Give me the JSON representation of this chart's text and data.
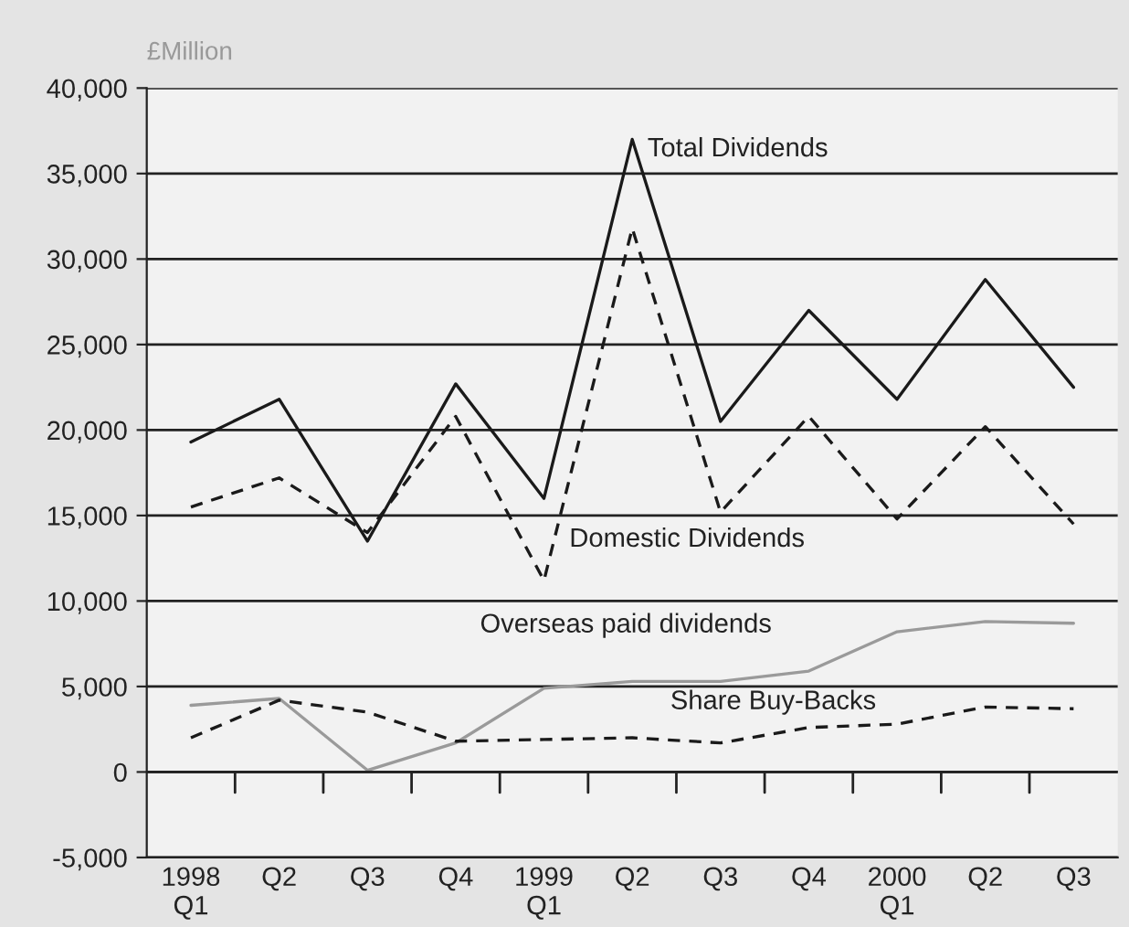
{
  "chart_data": {
    "type": "line",
    "ylabel": "£Million",
    "categories": [
      "1998\nQ1",
      "Q2",
      "Q3",
      "Q4",
      "1999\nQ1",
      "Q2",
      "Q3",
      "Q4",
      "2000\nQ1",
      "Q2",
      "Q3"
    ],
    "series": [
      {
        "name": "Total Dividends",
        "color": "#1a1a1a",
        "line_style": "solid",
        "values": [
          19300,
          21800,
          13500,
          22700,
          16000,
          37000,
          20500,
          27000,
          21800,
          28800,
          22500
        ]
      },
      {
        "name": "Domestic Dividends",
        "color": "#1a1a1a",
        "line_style": "dashed",
        "values": [
          15500,
          17200,
          14000,
          20800,
          11200,
          31800,
          15200,
          20800,
          14800,
          20200,
          14500
        ]
      },
      {
        "name": "Overseas paid dividends",
        "color": "#9a9a9a",
        "line_style": "solid",
        "values": [
          3900,
          4300,
          100,
          1700,
          4900,
          5300,
          5300,
          5900,
          8200,
          8800,
          8700
        ]
      },
      {
        "name": "Share Buy-Backs",
        "color": "#1a1a1a",
        "line_style": "dashed",
        "values": [
          2000,
          4200,
          3500,
          1800,
          1900,
          2000,
          1700,
          2600,
          2800,
          3800,
          3700
        ]
      }
    ],
    "ylim": [
      -5000,
      40000
    ],
    "yticks": [
      {
        "value": -5000,
        "label": "-5,000"
      },
      {
        "value": 0,
        "label": "0"
      },
      {
        "value": 5000,
        "label": "5,000"
      },
      {
        "value": 10000,
        "label": "10,000"
      },
      {
        "value": 15000,
        "label": "15,000"
      },
      {
        "value": 20000,
        "label": "20,000"
      },
      {
        "value": 25000,
        "label": "25,000"
      },
      {
        "value": 30000,
        "label": "30,000"
      },
      {
        "value": 35000,
        "label": "35,000"
      },
      {
        "value": 40000,
        "label": "40,000"
      }
    ],
    "grid": "y",
    "legend": false,
    "marker": "none"
  }
}
